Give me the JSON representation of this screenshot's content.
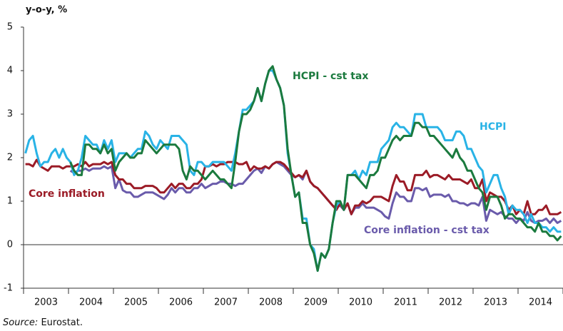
{
  "chart_data": {
    "type": "line",
    "y_label": "y-o-y, %",
    "source": {
      "label": "Source:",
      "text": "Eurostat."
    },
    "categories": [
      null,
      null,
      null,
      null,
      null,
      null,
      "2003",
      null,
      null,
      null,
      null,
      null,
      null,
      null,
      null,
      null,
      null,
      null,
      "2004",
      null,
      null,
      null,
      null,
      null,
      null,
      null,
      null,
      null,
      null,
      null,
      "2005",
      null,
      null,
      null,
      null,
      null,
      null,
      null,
      null,
      null,
      null,
      null,
      "2006",
      null,
      null,
      null,
      null,
      null,
      null,
      null,
      null,
      null,
      null,
      null,
      "2007",
      null,
      null,
      null,
      null,
      null,
      null,
      null,
      null,
      null,
      null,
      null,
      "2008",
      null,
      null,
      null,
      null,
      null,
      null,
      null,
      null,
      null,
      null,
      null,
      "2009",
      null,
      null,
      null,
      null,
      null,
      null,
      null,
      null,
      null,
      null,
      null,
      "2010",
      null,
      null,
      null,
      null,
      null,
      null,
      null,
      null,
      null,
      null,
      null,
      "2011",
      null,
      null,
      null,
      null,
      null,
      null,
      null,
      null,
      null,
      null,
      null,
      "2012",
      null,
      null,
      null,
      null,
      null,
      null,
      null,
      null,
      null,
      null,
      null,
      "2013",
      null,
      null,
      null,
      null,
      null,
      null,
      null,
      null,
      null,
      null,
      null,
      "2014",
      null,
      null,
      null,
      null,
      null
    ],
    "ylim": [
      -1,
      5
    ],
    "yticks": [
      -1,
      0,
      1,
      2,
      3,
      4,
      5
    ],
    "series": [
      {
        "name": "HCPI",
        "color": "#29b3e6",
        "values": [
          2.1,
          2.4,
          2.5,
          2.1,
          1.8,
          1.9,
          1.9,
          2.1,
          2.2,
          2.0,
          2.2,
          2.0,
          1.9,
          1.6,
          1.7,
          2.0,
          2.5,
          2.4,
          2.3,
          2.3,
          2.1,
          2.4,
          2.2,
          2.4,
          1.9,
          2.1,
          2.1,
          2.1,
          2.0,
          2.1,
          2.2,
          2.2,
          2.6,
          2.5,
          2.3,
          2.2,
          2.4,
          2.3,
          2.2,
          2.5,
          2.5,
          2.5,
          2.4,
          2.3,
          1.7,
          1.6,
          1.9,
          1.9,
          1.8,
          1.8,
          1.9,
          1.9,
          1.9,
          1.9,
          1.8,
          1.7,
          2.1,
          2.6,
          3.1,
          3.1,
          3.2,
          3.3,
          3.6,
          3.3,
          3.7,
          4.0,
          4.0,
          3.8,
          3.6,
          3.2,
          2.1,
          1.6,
          1.1,
          1.2,
          0.6,
          0.6,
          0.0,
          -0.1,
          -0.6,
          -0.2,
          -0.3,
          -0.1,
          0.5,
          0.9,
          1.0,
          0.8,
          1.6,
          1.6,
          1.7,
          1.5,
          1.7,
          1.6,
          1.9,
          1.9,
          1.9,
          2.2,
          2.3,
          2.4,
          2.7,
          2.8,
          2.7,
          2.7,
          2.6,
          2.5,
          3.0,
          3.0,
          3.0,
          2.7,
          2.7,
          2.7,
          2.7,
          2.6,
          2.4,
          2.4,
          2.4,
          2.6,
          2.6,
          2.5,
          2.2,
          2.2,
          2.0,
          1.8,
          1.7,
          1.2,
          1.4,
          1.6,
          1.6,
          1.3,
          1.1,
          0.7,
          0.9,
          0.8,
          0.8,
          0.7,
          0.5,
          0.7,
          0.5,
          0.5,
          0.4,
          0.4,
          0.3,
          0.4,
          0.3,
          0.3
        ]
      },
      {
        "name": "HCPI - cst tax",
        "color": "#1b7a3e",
        "values": [
          null,
          null,
          null,
          null,
          null,
          null,
          null,
          null,
          null,
          null,
          null,
          null,
          1.9,
          1.7,
          1.6,
          1.6,
          2.3,
          2.3,
          2.2,
          2.2,
          2.1,
          2.3,
          2.1,
          2.2,
          1.7,
          1.9,
          2.0,
          2.1,
          2.0,
          2.0,
          2.1,
          2.1,
          2.4,
          2.3,
          2.2,
          2.1,
          2.2,
          2.3,
          2.3,
          2.3,
          2.3,
          2.2,
          1.7,
          1.5,
          1.8,
          1.7,
          1.7,
          1.6,
          1.5,
          1.6,
          1.7,
          1.6,
          1.5,
          1.5,
          1.4,
          1.3,
          1.9,
          2.6,
          3.0,
          3.0,
          3.1,
          3.3,
          3.6,
          3.3,
          3.7,
          4.0,
          4.1,
          3.8,
          3.6,
          3.2,
          2.2,
          1.6,
          1.1,
          1.2,
          0.5,
          0.5,
          0.0,
          -0.2,
          -0.6,
          -0.2,
          -0.3,
          -0.1,
          0.5,
          1.0,
          1.0,
          0.8,
          1.6,
          1.6,
          1.6,
          1.5,
          1.4,
          1.3,
          1.6,
          1.6,
          1.7,
          2.0,
          2.0,
          2.2,
          2.4,
          2.5,
          2.4,
          2.5,
          2.5,
          2.5,
          2.8,
          2.8,
          2.7,
          2.7,
          2.5,
          2.5,
          2.4,
          2.3,
          2.2,
          2.1,
          2.0,
          2.2,
          2.0,
          1.9,
          1.7,
          1.7,
          1.5,
          1.3,
          1.2,
          0.8,
          1.1,
          1.1,
          1.1,
          0.9,
          0.6,
          0.7,
          0.7,
          0.6,
          0.6,
          0.5,
          0.4,
          0.4,
          0.3,
          0.5,
          0.3,
          0.3,
          0.2,
          0.2,
          0.1,
          0.2
        ]
      },
      {
        "name": "Core inflation",
        "color": "#9b1b26",
        "values": [
          1.85,
          1.85,
          1.8,
          1.95,
          1.8,
          1.75,
          1.7,
          1.8,
          1.8,
          1.8,
          1.75,
          1.8,
          1.8,
          1.8,
          1.85,
          1.8,
          1.9,
          1.8,
          1.85,
          1.85,
          1.85,
          1.9,
          1.85,
          1.9,
          1.6,
          1.5,
          1.5,
          1.4,
          1.4,
          1.3,
          1.3,
          1.3,
          1.35,
          1.35,
          1.35,
          1.3,
          1.2,
          1.2,
          1.3,
          1.4,
          1.3,
          1.4,
          1.4,
          1.3,
          1.3,
          1.4,
          1.4,
          1.5,
          1.8,
          1.8,
          1.85,
          1.8,
          1.85,
          1.85,
          1.9,
          1.9,
          1.9,
          1.85,
          1.85,
          1.9,
          1.7,
          1.8,
          1.75,
          1.75,
          1.8,
          1.75,
          1.85,
          1.9,
          1.9,
          1.85,
          1.75,
          1.65,
          1.55,
          1.6,
          1.55,
          1.7,
          1.45,
          1.35,
          1.3,
          1.2,
          1.1,
          1.0,
          0.9,
          0.8,
          0.95,
          0.8,
          0.95,
          0.7,
          0.9,
          0.9,
          1.0,
          0.95,
          1.0,
          1.1,
          1.1,
          1.1,
          1.05,
          1.0,
          1.35,
          1.6,
          1.45,
          1.45,
          1.25,
          1.25,
          1.6,
          1.6,
          1.6,
          1.7,
          1.55,
          1.6,
          1.6,
          1.55,
          1.5,
          1.6,
          1.5,
          1.5,
          1.5,
          1.45,
          1.4,
          1.5,
          1.3,
          1.3,
          1.5,
          1.0,
          1.2,
          1.15,
          1.1,
          1.1,
          1.0,
          0.8,
          0.9,
          0.7,
          0.8,
          0.7,
          1.0,
          0.7,
          0.7,
          0.8,
          0.8,
          0.9,
          0.7,
          0.7,
          0.7,
          0.75
        ]
      },
      {
        "name": "Core inflation - cst tax",
        "color": "#6a5bab",
        "values": [
          null,
          null,
          null,
          null,
          null,
          null,
          null,
          null,
          null,
          null,
          null,
          null,
          1.7,
          1.65,
          1.7,
          1.7,
          1.75,
          1.7,
          1.75,
          1.75,
          1.75,
          1.8,
          1.75,
          1.8,
          1.3,
          1.5,
          1.25,
          1.2,
          1.2,
          1.1,
          1.1,
          1.15,
          1.2,
          1.2,
          1.2,
          1.15,
          1.1,
          1.05,
          1.15,
          1.3,
          1.2,
          1.3,
          1.3,
          1.2,
          1.2,
          1.3,
          1.3,
          1.4,
          1.3,
          1.35,
          1.4,
          1.4,
          1.45,
          1.45,
          1.4,
          1.4,
          1.35,
          1.4,
          1.4,
          1.5,
          1.6,
          1.7,
          1.75,
          1.65,
          1.8,
          1.75,
          1.85,
          1.9,
          1.85,
          1.8,
          1.7,
          1.6,
          1.55,
          1.6,
          1.5,
          1.7,
          1.45,
          1.35,
          1.3,
          1.2,
          1.1,
          1.0,
          0.9,
          0.85,
          0.9,
          0.8,
          0.95,
          0.7,
          0.85,
          0.85,
          0.95,
          0.85,
          0.85,
          0.85,
          0.8,
          0.75,
          0.65,
          0.6,
          0.95,
          1.2,
          1.1,
          1.1,
          1.0,
          1.0,
          1.3,
          1.3,
          1.25,
          1.3,
          1.1,
          1.15,
          1.15,
          1.15,
          1.1,
          1.15,
          1.0,
          1.0,
          0.95,
          0.95,
          0.9,
          0.95,
          0.95,
          0.9,
          1.1,
          0.55,
          0.8,
          0.75,
          0.7,
          0.75,
          0.65,
          0.6,
          0.6,
          0.5,
          0.6,
          0.55,
          0.75,
          0.55,
          0.5,
          0.55,
          0.55,
          0.6,
          0.5,
          0.6,
          0.5,
          0.55
        ]
      }
    ]
  }
}
